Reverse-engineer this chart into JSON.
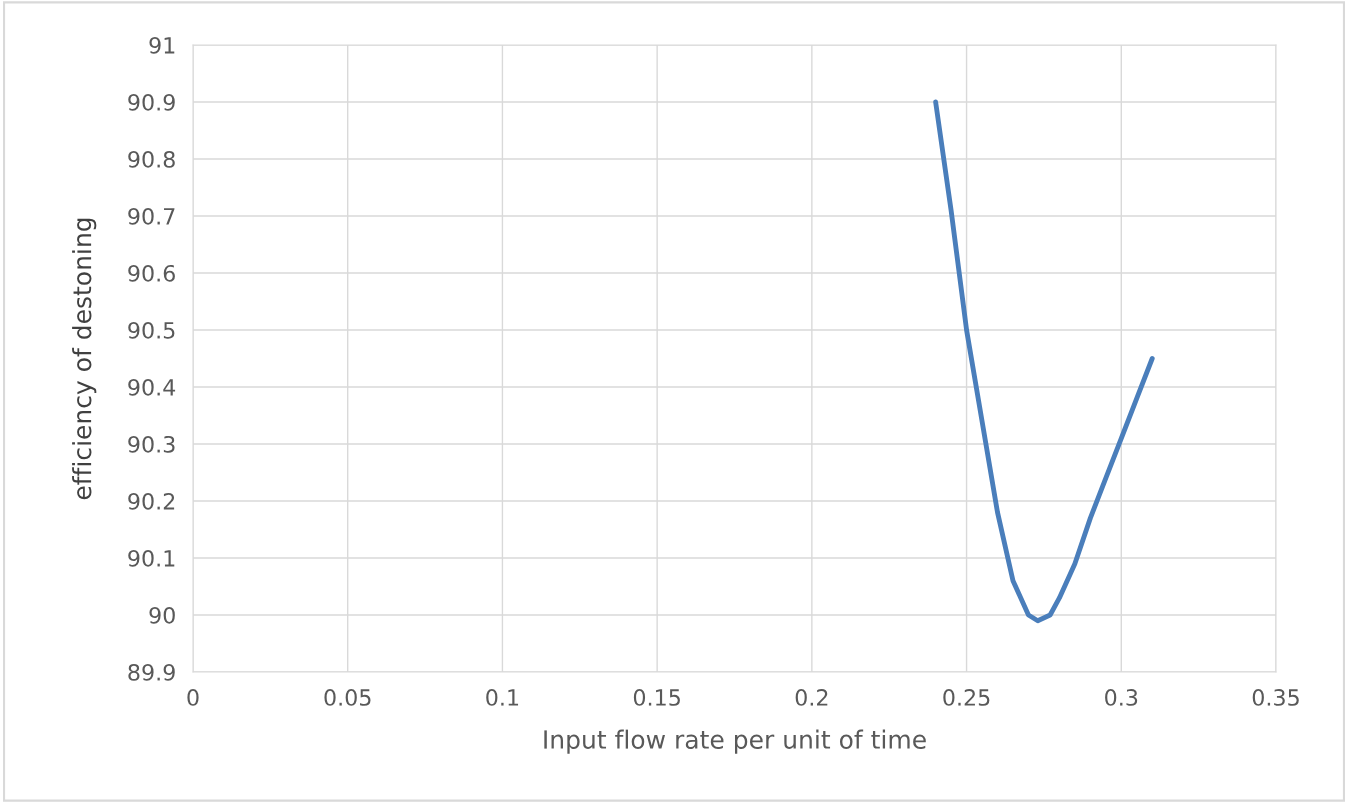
{
  "chart_data": {
    "type": "line",
    "xlabel": "Input flow rate per unit of time",
    "ylabel": "efficiency of destoning",
    "series": [
      {
        "color": "#4a7ebb",
        "x": [
          0.24,
          0.245,
          0.25,
          0.255,
          0.26,
          0.265,
          0.27,
          0.273,
          0.277,
          0.28,
          0.285,
          0.29,
          0.295,
          0.3,
          0.305,
          0.31
        ],
        "values": [
          90.9,
          90.71,
          90.5,
          90.34,
          90.18,
          90.06,
          90.0,
          89.99,
          90.0,
          90.03,
          90.09,
          90.17,
          90.24,
          90.31,
          90.38,
          90.45
        ]
      }
    ],
    "xlim": [
      0,
      0.35
    ],
    "xticks": [
      0,
      0.05,
      0.1,
      0.15,
      0.2,
      0.25,
      0.3,
      0.35
    ],
    "ylim": [
      89.9,
      91
    ],
    "yticks": [
      89.9,
      90,
      90.1,
      90.2,
      90.3,
      90.4,
      90.5,
      90.6,
      90.7,
      90.8,
      90.9,
      91
    ],
    "grid": true,
    "marker": "none",
    "line_style": "solid"
  }
}
